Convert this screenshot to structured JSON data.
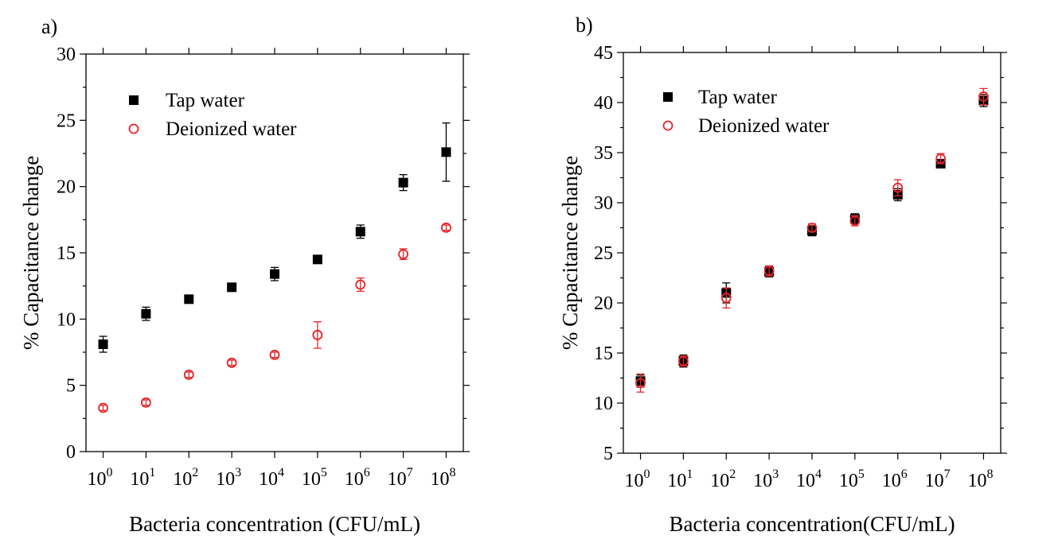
{
  "chart_data": [
    {
      "type": "scatter",
      "panel_label": "a)",
      "xlabel": "Bacteria concentration (CFU/mL)",
      "ylabel": "% Capacitance change",
      "x_ticks": [
        {
          "base": "10",
          "exp": "0"
        },
        {
          "base": "10",
          "exp": "1"
        },
        {
          "base": "10",
          "exp": "2"
        },
        {
          "base": "10",
          "exp": "3"
        },
        {
          "base": "10",
          "exp": "4"
        },
        {
          "base": "10",
          "exp": "5"
        },
        {
          "base": "10",
          "exp": "6"
        },
        {
          "base": "10",
          "exp": "7"
        },
        {
          "base": "10",
          "exp": "8"
        }
      ],
      "x": [
        0,
        1,
        2,
        3,
        4,
        5,
        6,
        7,
        8
      ],
      "xlim": [
        -0.4,
        8.4
      ],
      "ylim": [
        0,
        30
      ],
      "y_ticks": [
        "0",
        "5",
        "10",
        "15",
        "20",
        "25",
        "30"
      ],
      "legend_position": "top-left",
      "series": [
        {
          "name": "Tap water",
          "marker": "filled-square",
          "color": "#000000",
          "values": [
            8.1,
            10.4,
            11.5,
            12.4,
            13.4,
            14.5,
            16.6,
            20.3,
            22.6
          ],
          "errors": [
            0.6,
            0.5,
            0.2,
            0.2,
            0.5,
            0.2,
            0.5,
            0.6,
            2.2
          ]
        },
        {
          "name": "Deionized water",
          "marker": "open-circle",
          "color": "#e8242a",
          "values": [
            3.3,
            3.7,
            5.8,
            6.7,
            7.3,
            8.8,
            12.6,
            14.9,
            16.9
          ],
          "errors": [
            0.2,
            0.2,
            0.2,
            0.2,
            0.2,
            1.0,
            0.5,
            0.4,
            0.2
          ]
        }
      ]
    },
    {
      "type": "scatter",
      "panel_label": "b)",
      "xlabel": "Bacteria concentration(CFU/mL)",
      "ylabel": "% Capacitance change",
      "x_ticks": [
        {
          "base": "10",
          "exp": "0"
        },
        {
          "base": "10",
          "exp": "1"
        },
        {
          "base": "10",
          "exp": "2"
        },
        {
          "base": "10",
          "exp": "3"
        },
        {
          "base": "10",
          "exp": "4"
        },
        {
          "base": "10",
          "exp": "5"
        },
        {
          "base": "10",
          "exp": "6"
        },
        {
          "base": "10",
          "exp": "7"
        },
        {
          "base": "10",
          "exp": "8"
        }
      ],
      "x": [
        0,
        1,
        2,
        3,
        4,
        5,
        6,
        7,
        8
      ],
      "xlim": [
        -0.4,
        8.4
      ],
      "ylim": [
        5,
        45
      ],
      "y_ticks": [
        "5",
        "10",
        "15",
        "20",
        "25",
        "30",
        "35",
        "40",
        "45"
      ],
      "legend_position": "top-left",
      "series": [
        {
          "name": "Tap water",
          "marker": "filled-square",
          "color": "#000000",
          "values": [
            12.2,
            14.2,
            21.0,
            23.1,
            27.2,
            28.4,
            30.8,
            33.9,
            40.2
          ],
          "errors": [
            0.6,
            0.6,
            1.0,
            0.5,
            0.5,
            0.5,
            0.6,
            0.4,
            0.6
          ]
        },
        {
          "name": "Deionized water",
          "marker": "open-circle",
          "color": "#e8242a",
          "values": [
            12.0,
            14.2,
            20.5,
            23.2,
            27.5,
            28.2,
            31.5,
            34.4,
            40.6
          ],
          "errors": [
            0.9,
            0.5,
            1.0,
            0.5,
            0.4,
            0.5,
            0.8,
            0.5,
            0.8
          ]
        }
      ]
    }
  ]
}
